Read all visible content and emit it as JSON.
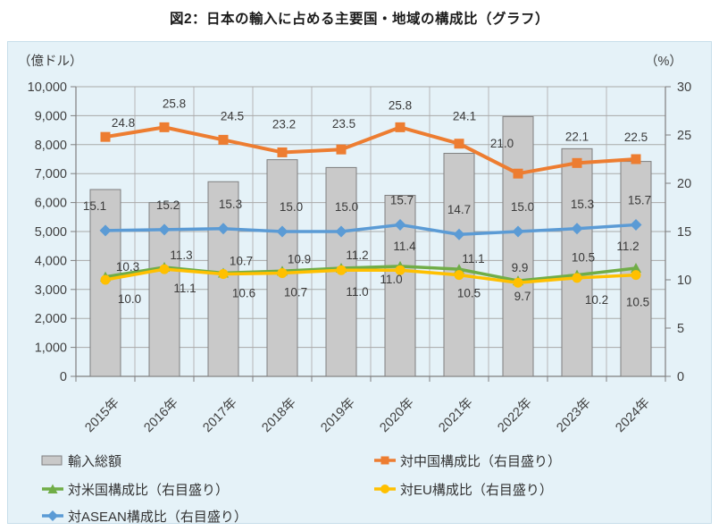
{
  "title": "図2：日本の輸入に占める主要国・地域の構成比（グラフ）",
  "chart_data": {
    "type": "combo-bar-line",
    "categories": [
      "2015年",
      "2016年",
      "2017年",
      "2018年",
      "2019年",
      "2020年",
      "2021年",
      "2022年",
      "2023年",
      "2024年"
    ],
    "left_axis": {
      "unit_label": "（億ドル）",
      "min": 0,
      "max": 10000,
      "step": 1000,
      "tick_labels": [
        "10,000",
        "9,000",
        "8,000",
        "7,000",
        "6,000",
        "5,000",
        "4,000",
        "3,000",
        "2,000",
        "1,000",
        "0"
      ]
    },
    "right_axis": {
      "unit_label": "（%）",
      "min": 0,
      "max": 30,
      "step": 5,
      "tick_labels": [
        "30",
        "25",
        "20",
        "15",
        "10",
        "5",
        "0"
      ]
    },
    "grid": "horizontal-and-vertical",
    "bar_series": {
      "name": "輸入総額",
      "axis": "left",
      "values": [
        6450,
        6000,
        6720,
        7480,
        7210,
        6250,
        7700,
        8970,
        7860,
        7420
      ],
      "color": "#C9C9C9",
      "border": "#7F7F7F"
    },
    "line_series": [
      {
        "name": "対中国構成比（右目盛り）",
        "name_key": "china",
        "axis": "right",
        "marker": "square",
        "color": "#ED7D31",
        "values": [
          24.8,
          25.8,
          24.5,
          23.2,
          23.5,
          25.8,
          24.1,
          21.0,
          22.1,
          22.5
        ]
      },
      {
        "name": "対米国構成比（右目盛り）",
        "name_key": "us",
        "axis": "right",
        "marker": "triangle",
        "color": "#70AD47",
        "values": [
          10.3,
          11.3,
          10.7,
          10.9,
          11.2,
          11.4,
          11.1,
          9.9,
          10.5,
          11.2
        ]
      },
      {
        "name": "対EU構成比（右目盛り）",
        "name_key": "eu",
        "axis": "right",
        "marker": "circle",
        "color": "#FFC000",
        "values": [
          10.0,
          11.1,
          10.6,
          10.7,
          11.0,
          11.0,
          10.5,
          9.7,
          10.2,
          10.5
        ]
      },
      {
        "name": "対ASEAN構成比（右目盛り）",
        "name_key": "asean",
        "axis": "right",
        "marker": "diamond",
        "color": "#5B9BD5",
        "values": [
          15.1,
          15.2,
          15.3,
          15.0,
          15.0,
          15.7,
          14.7,
          15.0,
          15.3,
          15.7
        ]
      }
    ],
    "legend_position": "bottom"
  },
  "legend": {
    "items": [
      {
        "label": "輸入総額"
      },
      {
        "label": "対中国構成比（右目盛り）"
      },
      {
        "label": "対米国構成比（右目盛り）"
      },
      {
        "label": "対EU構成比（右目盛り）"
      },
      {
        "label": "対ASEAN構成比（右目盛り）"
      }
    ]
  },
  "colors": {
    "panel_bg": "#E5F2F8",
    "grid_h": "#A9A9A9",
    "grid_v": "#B7B7B7",
    "axis": "#7F7F7F",
    "label": "#404040",
    "data_label": "#3a3a3a"
  }
}
